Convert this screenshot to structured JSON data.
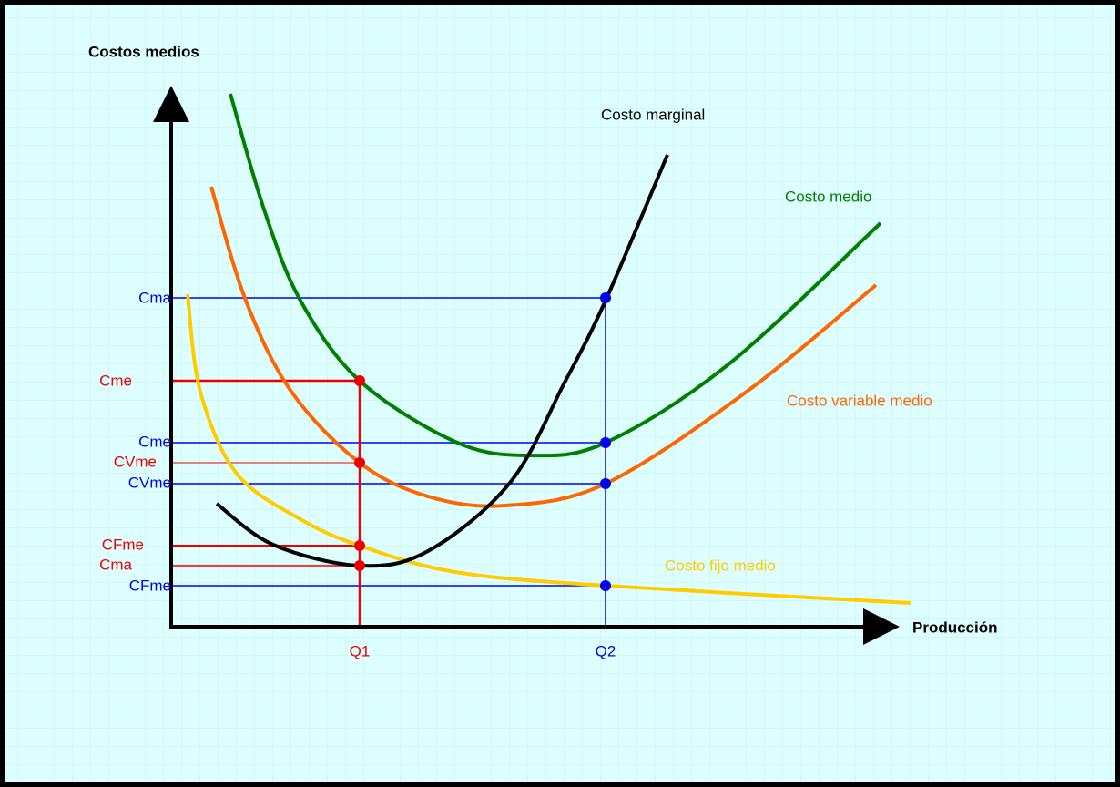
{
  "axes": {
    "y_label": "Costos medios",
    "x_label": "Producción"
  },
  "curves": [
    {
      "label": "Costo marginal"
    },
    {
      "label": "Costo medio"
    },
    {
      "label": "Costo variable medio"
    },
    {
      "label": "Costo fijo medio"
    }
  ],
  "y_labels": [
    "Cma",
    "Cme",
    "Cme",
    "CVme",
    "CVme",
    "CFme",
    "Cma",
    "CFme"
  ],
  "x_labels": [
    "Q1",
    "Q2"
  ]
}
